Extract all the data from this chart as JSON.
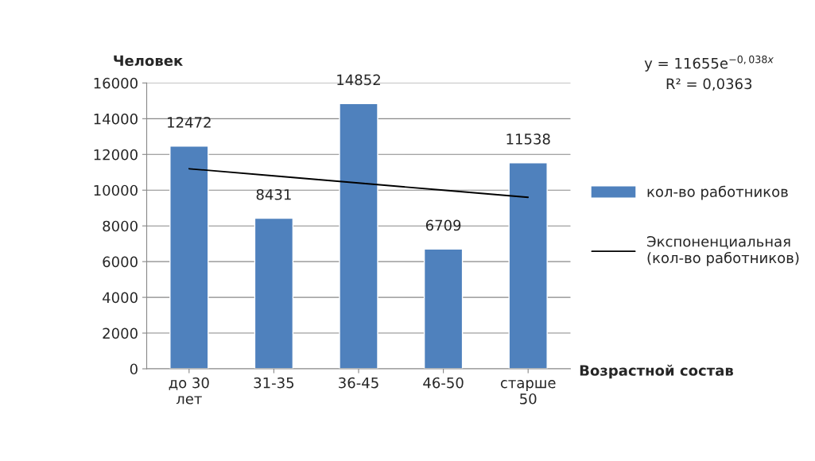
{
  "chart_data": {
    "type": "bar",
    "ylabel": "Человек",
    "xlabel": "Возрастной состав",
    "categories": [
      "до 30\nлет",
      "31-35",
      "36-45",
      "46-50",
      "старше\n50"
    ],
    "series": [
      {
        "name": "кол-во работников",
        "color": "#4f81bd",
        "values": [
          12472,
          8431,
          14852,
          6709,
          11538
        ],
        "value_labels": [
          "12472",
          "8431",
          "14852",
          "6709",
          "11538"
        ]
      },
      {
        "name": "Экспоненциальная\n(кол-во работников)",
        "type": "line",
        "color": "#000000",
        "values": [
          11200,
          10800,
          10400,
          10000,
          9600
        ]
      }
    ],
    "ylim": [
      0,
      16000
    ],
    "yticks": [
      0,
      2000,
      4000,
      6000,
      8000,
      10000,
      12000,
      14000,
      16000
    ],
    "grid": "y",
    "legend": "right",
    "annotations": [
      "y = 11655e$^{−0,038x}$\nR² = 0,0363"
    ]
  }
}
